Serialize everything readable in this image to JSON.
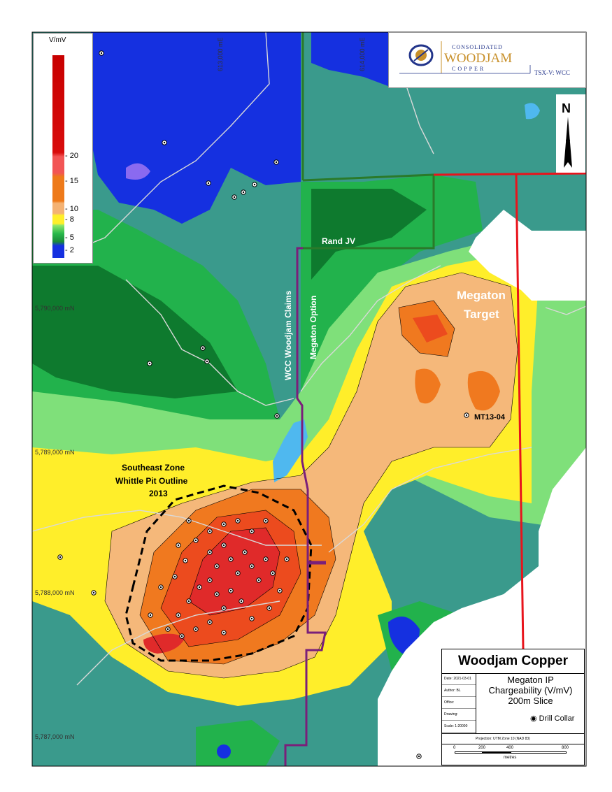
{
  "legend": {
    "unit": "V/mV",
    "ticks": [
      "- 20",
      "- 15",
      "- 10",
      "- 8",
      "- 5",
      "- 2"
    ]
  },
  "logo": {
    "line1": "CONSOLIDATED",
    "line2": "WOODJAM",
    "line3": "COPPER",
    "ticker": "TSX-V: WCC"
  },
  "north_arrow": {
    "label": "N"
  },
  "grid_labels": {
    "northings": [
      "5,790,000 mN",
      "5,789,000 mN",
      "5,788,000 mN",
      "5,787,000 mN"
    ],
    "eastings": [
      "613,000 mE",
      "614,000 mE"
    ]
  },
  "map_labels": {
    "rand_jv": "Rand JV",
    "wcc_claims": "WCC Woodjam Claims",
    "megaton_option": "Megaton Option",
    "megaton_target_1": "Megaton",
    "megaton_target_2": "Target",
    "mt13": "MT13-04",
    "southeast_1": "Southeast Zone",
    "southeast_2": "Whittle Pit Outline",
    "southeast_3": "2013"
  },
  "title_block": {
    "company": "Woodjam Copper",
    "title_1": "Megaton IP",
    "title_2": "Chargeability (V/mV)",
    "title_3": "200m Slice",
    "legend_item": "Drill Collar",
    "meta": [
      "Date: 2021-03-01",
      "Author: BL",
      "Office:",
      "Drawing:",
      "Scale: 1:20000"
    ],
    "projection": "Projection: UTM Zone 10 (NAD 83)",
    "scale_ticks": [
      "0",
      "200",
      "400",
      "800"
    ],
    "scale_unit": "metres"
  },
  "colors": {
    "deep_blue": "#1530e0",
    "teal": "#3a9a8c",
    "dark_green": "#0e7a2e",
    "green": "#22b24c",
    "light_green": "#7fe07a",
    "yellow": "#ffee2a",
    "light_orange": "#f5b87a",
    "orange": "#f0791f",
    "orange_red": "#ec4b1e",
    "red": "#e02a2a",
    "claim_red": "#e8141c",
    "claim_purple": "#7a1f7a",
    "claim_green": "#2a7a2a",
    "lake": "#4fb8ef"
  }
}
